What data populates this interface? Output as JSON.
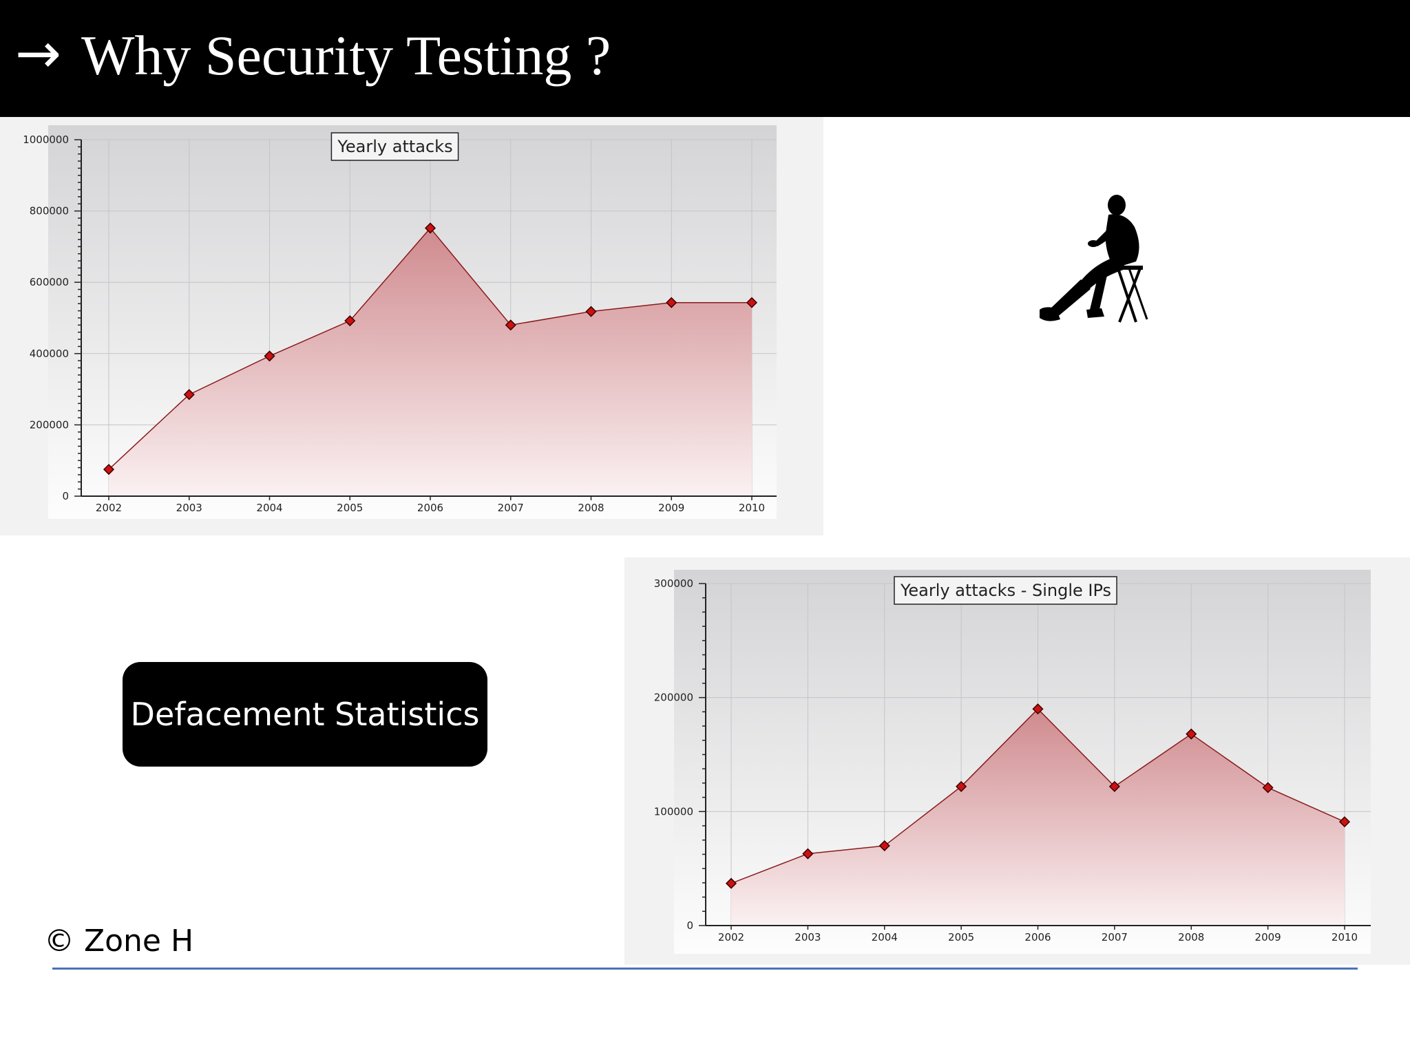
{
  "slide": {
    "arrow_glyph": "→",
    "title": "Why Security Testing ?",
    "button_label": "Defacement Statistics",
    "credit": "© Zone H",
    "accent_color": "#4a72b8"
  },
  "chart_data": [
    {
      "type": "area",
      "title": "Yearly attacks",
      "xlabel": "",
      "ylabel": "",
      "categories": [
        "2002",
        "2003",
        "2004",
        "2005",
        "2006",
        "2007",
        "2008",
        "2009",
        "2010"
      ],
      "values": [
        75000,
        285000,
        393000,
        492000,
        752000,
        480000,
        518000,
        543000,
        543000
      ],
      "ylim": [
        0,
        1000000
      ],
      "yticks": [
        0,
        200000,
        400000,
        600000,
        800000,
        1000000
      ],
      "grid": true,
      "legend_position": "top-center",
      "line_color": "#8b1a1a",
      "marker_color": "#cc1111",
      "fill_top": "#cf8a8e",
      "fill_bottom": "#fbf1f2"
    },
    {
      "type": "area",
      "title": "Yearly attacks - Single IPs",
      "xlabel": "",
      "ylabel": "",
      "categories": [
        "2002",
        "2003",
        "2004",
        "2005",
        "2006",
        "2007",
        "2008",
        "2009",
        "2010"
      ],
      "values": [
        37000,
        63000,
        70000,
        122000,
        190000,
        122000,
        168000,
        121000,
        91000
      ],
      "ylim": [
        0,
        300000
      ],
      "yticks": [
        0,
        100000,
        200000,
        300000
      ],
      "grid": true,
      "legend_position": "top-center",
      "line_color": "#8b1a1a",
      "marker_color": "#cc1111",
      "fill_top": "#cf8a8e",
      "fill_bottom": "#fbf1f2"
    }
  ]
}
